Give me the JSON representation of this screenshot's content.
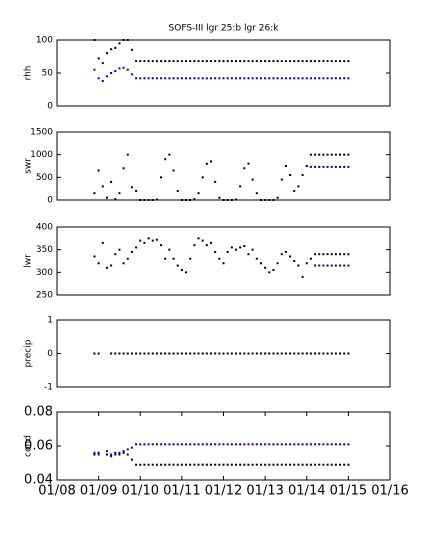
{
  "chart_data": [
    {
      "type": "scatter",
      "title": "SOFS-III  lgr 25:b lgr 26:k",
      "ylabel": "rhh",
      "xlim": [
        8,
        16
      ],
      "ylim": [
        0,
        100
      ],
      "yticks": [
        0,
        50,
        100
      ],
      "x": [
        8.9,
        9.0,
        9.1,
        9.2,
        9.3,
        9.4,
        9.5,
        9.6,
        9.7,
        9.8,
        9.9,
        10.0,
        10.1,
        10.2,
        10.3,
        10.4,
        10.5,
        10.6,
        10.7,
        10.8,
        10.9,
        11.0,
        11.1,
        11.2,
        11.3,
        11.4,
        11.5,
        11.6,
        11.7,
        11.8,
        11.9,
        12.0,
        12.1,
        12.2,
        12.3,
        12.4,
        12.5,
        12.6,
        12.7,
        12.8,
        12.9,
        13.0,
        13.1,
        13.2,
        13.3,
        13.4,
        13.5,
        13.6,
        13.7,
        13.8,
        13.9,
        14.0,
        14.1,
        14.2,
        14.3,
        14.4,
        14.5,
        14.6,
        14.7,
        14.8,
        14.9,
        15.0
      ],
      "series": [
        {
          "color": "#000000",
          "values": [
            100,
            72,
            65,
            80,
            86,
            88,
            95,
            100,
            100,
            85,
            68,
            68,
            68,
            68,
            68,
            68,
            68,
            68,
            68,
            68,
            68,
            68,
            68,
            68,
            68,
            68,
            68,
            68,
            68,
            68,
            68,
            68,
            68,
            68,
            68,
            68,
            68,
            68,
            68,
            68,
            68,
            68,
            68,
            68,
            68,
            68,
            68,
            68,
            68,
            68,
            68,
            68,
            68,
            68,
            68,
            68,
            68,
            68,
            68,
            68,
            68,
            68
          ]
        },
        {
          "color": "#0000cc",
          "values": [
            55,
            42,
            38,
            45,
            50,
            53,
            57,
            58,
            55,
            48,
            42,
            42,
            42,
            42,
            42,
            42,
            42,
            42,
            42,
            42,
            42,
            42,
            42,
            42,
            42,
            42,
            42,
            42,
            42,
            42,
            42,
            42,
            42,
            42,
            42,
            42,
            42,
            42,
            42,
            42,
            42,
            42,
            42,
            42,
            42,
            42,
            42,
            42,
            42,
            42,
            42,
            42,
            42,
            42,
            42,
            42,
            42,
            42,
            42,
            42,
            42,
            42
          ]
        }
      ]
    },
    {
      "type": "scatter",
      "ylabel": "swr",
      "xlim": [
        8,
        16
      ],
      "ylim": [
        0,
        1500
      ],
      "yticks": [
        0,
        500,
        1000,
        1500
      ],
      "x": [
        8.9,
        9.0,
        9.1,
        9.2,
        9.3,
        9.4,
        9.5,
        9.6,
        9.7,
        9.8,
        9.9,
        10.0,
        10.1,
        10.2,
        10.3,
        10.4,
        10.5,
        10.6,
        10.7,
        10.8,
        10.9,
        11.0,
        11.1,
        11.2,
        11.3,
        11.4,
        11.5,
        11.6,
        11.7,
        11.8,
        11.9,
        12.0,
        12.1,
        12.2,
        12.3,
        12.4,
        12.5,
        12.6,
        12.7,
        12.8,
        12.9,
        13.0,
        13.1,
        13.2,
        13.3,
        13.4,
        13.5,
        13.6,
        13.7,
        13.8,
        13.9,
        14.0,
        14.1,
        14.2,
        14.3,
        14.4,
        14.5,
        14.6,
        14.7,
        14.8,
        14.9,
        15.0
      ],
      "series": [
        {
          "color": "#000000",
          "values": [
            150,
            650,
            300,
            50,
            400,
            20,
            150,
            700,
            1000,
            280,
            200,
            0,
            0,
            0,
            0,
            10,
            500,
            900,
            1000,
            650,
            200,
            0,
            0,
            0,
            20,
            150,
            500,
            800,
            850,
            400,
            50,
            0,
            0,
            0,
            10,
            300,
            700,
            800,
            450,
            150,
            0,
            0,
            0,
            0,
            50,
            450,
            750,
            550,
            200,
            300,
            550,
            750,
            1000,
            1000,
            1000,
            1000,
            1000,
            1000,
            1000,
            1000,
            1000,
            1000
          ]
        },
        {
          "color": "#0000cc",
          "values": [
            null,
            null,
            null,
            null,
            null,
            null,
            null,
            null,
            null,
            null,
            null,
            null,
            null,
            null,
            null,
            null,
            null,
            null,
            null,
            null,
            null,
            null,
            null,
            null,
            null,
            null,
            null,
            null,
            null,
            null,
            null,
            null,
            null,
            null,
            null,
            null,
            null,
            null,
            null,
            null,
            null,
            null,
            null,
            null,
            null,
            null,
            null,
            null,
            null,
            null,
            null,
            null,
            730,
            730,
            730,
            730,
            730,
            730,
            730,
            730,
            730,
            730
          ]
        }
      ]
    },
    {
      "type": "scatter",
      "ylabel": "lwr",
      "xlim": [
        8,
        16
      ],
      "ylim": [
        250,
        400
      ],
      "yticks": [
        250,
        300,
        350,
        400
      ],
      "x": [
        8.9,
        9.0,
        9.1,
        9.2,
        9.3,
        9.4,
        9.5,
        9.6,
        9.7,
        9.8,
        9.9,
        10.0,
        10.1,
        10.2,
        10.3,
        10.4,
        10.5,
        10.6,
        10.7,
        10.8,
        10.9,
        11.0,
        11.1,
        11.2,
        11.3,
        11.4,
        11.5,
        11.6,
        11.7,
        11.8,
        11.9,
        12.0,
        12.1,
        12.2,
        12.3,
        12.4,
        12.5,
        12.6,
        12.7,
        12.8,
        12.9,
        13.0,
        13.1,
        13.2,
        13.3,
        13.4,
        13.5,
        13.6,
        13.7,
        13.8,
        13.9,
        14.0,
        14.1,
        14.2,
        14.3,
        14.4,
        14.5,
        14.6,
        14.7,
        14.8,
        14.9,
        15.0
      ],
      "series": [
        {
          "color": "#000000",
          "values": [
            335,
            320,
            365,
            310,
            315,
            340,
            350,
            320,
            330,
            345,
            355,
            370,
            365,
            375,
            370,
            372,
            360,
            330,
            350,
            330,
            315,
            305,
            300,
            330,
            360,
            375,
            370,
            360,
            365,
            345,
            330,
            320,
            345,
            355,
            350,
            355,
            358,
            340,
            350,
            330,
            320,
            310,
            300,
            305,
            320,
            340,
            345,
            335,
            325,
            315,
            290,
            320,
            330,
            340,
            340,
            340,
            340,
            340,
            340,
            340,
            340,
            340
          ]
        },
        {
          "color": "#0000cc",
          "values": [
            null,
            null,
            null,
            null,
            null,
            null,
            null,
            null,
            null,
            null,
            null,
            null,
            null,
            null,
            null,
            null,
            null,
            null,
            null,
            null,
            null,
            null,
            null,
            null,
            null,
            null,
            null,
            null,
            null,
            null,
            null,
            null,
            null,
            null,
            null,
            null,
            null,
            null,
            null,
            null,
            null,
            null,
            null,
            null,
            null,
            null,
            null,
            null,
            null,
            null,
            null,
            null,
            null,
            315,
            315,
            315,
            315,
            315,
            315,
            315,
            315,
            315
          ]
        }
      ]
    },
    {
      "type": "scatter",
      "ylabel": "precip",
      "xlim": [
        8,
        16
      ],
      "ylim": [
        -1,
        1
      ],
      "yticks": [
        -1,
        0,
        1
      ],
      "x": [
        8.9,
        9.0,
        9.1,
        9.2,
        9.3,
        9.4,
        9.5,
        9.6,
        9.7,
        9.8,
        9.9,
        10.0,
        10.1,
        10.2,
        10.3,
        10.4,
        10.5,
        10.6,
        10.7,
        10.8,
        10.9,
        11.0,
        11.1,
        11.2,
        11.3,
        11.4,
        11.5,
        11.6,
        11.7,
        11.8,
        11.9,
        12.0,
        12.1,
        12.2,
        12.3,
        12.4,
        12.5,
        12.6,
        12.7,
        12.8,
        12.9,
        13.0,
        13.1,
        13.2,
        13.3,
        13.4,
        13.5,
        13.6,
        13.7,
        13.8,
        13.9,
        14.0,
        14.1,
        14.2,
        14.3,
        14.4,
        14.5,
        14.6,
        14.7,
        14.8,
        14.9,
        15.0
      ],
      "series": [
        {
          "color": "#000000",
          "values": [
            0,
            0,
            null,
            null,
            0,
            0,
            0,
            0,
            0,
            0,
            0,
            0,
            0,
            0,
            0,
            0,
            0,
            0,
            0,
            0,
            0,
            0,
            0,
            0,
            0,
            0,
            0,
            0,
            0,
            0,
            0,
            0,
            0,
            0,
            0,
            0,
            0,
            0,
            0,
            0,
            0,
            0,
            0,
            0,
            0,
            0,
            0,
            0,
            0,
            0,
            0,
            0,
            0,
            0,
            0,
            0,
            0,
            0,
            0,
            0,
            0,
            0
          ]
        }
      ]
    },
    {
      "type": "scatter",
      "ylabel": "cond",
      "xlim": [
        8,
        16
      ],
      "ylim": [
        0.04,
        0.08
      ],
      "yticks": [
        0.04,
        0.06,
        0.08
      ],
      "xticks": [
        {
          "value": 8,
          "label": "01/08"
        },
        {
          "value": 9,
          "label": "01/09"
        },
        {
          "value": 10,
          "label": "01/10"
        },
        {
          "value": 11,
          "label": "01/11"
        },
        {
          "value": 12,
          "label": "01/12"
        },
        {
          "value": 13,
          "label": "01/13"
        },
        {
          "value": 14,
          "label": "01/14"
        },
        {
          "value": 15,
          "label": "01/15"
        },
        {
          "value": 16,
          "label": "01/16"
        }
      ],
      "x": [
        8.9,
        9.0,
        9.1,
        9.2,
        9.3,
        9.4,
        9.5,
        9.6,
        9.7,
        9.8,
        9.9,
        10.0,
        10.1,
        10.2,
        10.3,
        10.4,
        10.5,
        10.6,
        10.7,
        10.8,
        10.9,
        11.0,
        11.1,
        11.2,
        11.3,
        11.4,
        11.5,
        11.6,
        11.7,
        11.8,
        11.9,
        12.0,
        12.1,
        12.2,
        12.3,
        12.4,
        12.5,
        12.6,
        12.7,
        12.8,
        12.9,
        13.0,
        13.1,
        13.2,
        13.3,
        13.4,
        13.5,
        13.6,
        13.7,
        13.8,
        13.9,
        14.0,
        14.1,
        14.2,
        14.3,
        14.4,
        14.5,
        14.6,
        14.7,
        14.8,
        14.9,
        15.0
      ],
      "series": [
        {
          "color": "#000000",
          "values": [
            0.055,
            0.056,
            null,
            0.055,
            0.054,
            0.055,
            0.055,
            0.056,
            0.055,
            0.052,
            0.049,
            0.049,
            0.049,
            0.049,
            0.049,
            0.049,
            0.049,
            0.049,
            0.049,
            0.049,
            0.049,
            0.049,
            0.049,
            0.049,
            0.049,
            0.049,
            0.049,
            0.049,
            0.049,
            0.049,
            0.049,
            0.049,
            0.049,
            0.049,
            0.049,
            0.049,
            0.049,
            0.049,
            0.049,
            0.049,
            0.049,
            0.049,
            0.049,
            0.049,
            0.049,
            0.049,
            0.049,
            0.049,
            0.049,
            0.049,
            0.049,
            0.049,
            0.049,
            0.049,
            0.049,
            0.049,
            0.049,
            0.049,
            0.049,
            0.049,
            0.049,
            0.049
          ]
        },
        {
          "color": "#0000cc",
          "values": [
            0.056,
            0.055,
            null,
            0.057,
            0.055,
            0.056,
            0.056,
            0.057,
            0.058,
            0.059,
            0.061,
            0.061,
            0.061,
            0.061,
            0.061,
            0.061,
            0.061,
            0.061,
            0.061,
            0.061,
            0.061,
            0.061,
            0.061,
            0.061,
            0.061,
            0.061,
            0.061,
            0.061,
            0.061,
            0.061,
            0.061,
            0.061,
            0.061,
            0.061,
            0.061,
            0.061,
            0.061,
            0.061,
            0.061,
            0.061,
            0.061,
            0.061,
            0.061,
            0.061,
            0.061,
            0.061,
            0.061,
            0.061,
            0.061,
            0.061,
            0.061,
            0.061,
            0.061,
            0.061,
            0.061,
            0.061,
            0.061,
            0.061,
            0.061,
            0.061,
            0.061,
            0.061
          ]
        }
      ]
    }
  ]
}
